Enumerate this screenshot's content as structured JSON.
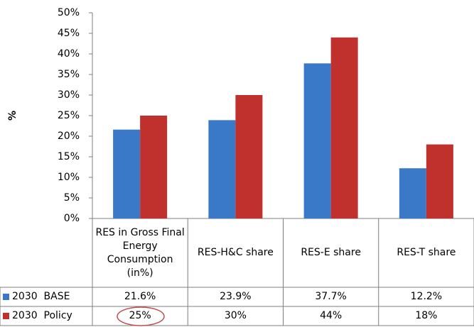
{
  "chart_data": {
    "type": "bar",
    "y_label": "%",
    "categories": [
      "RES in Gross Final Energy Consumption (in%)",
      "RES-H&C share",
      "RES-E share",
      "RES-T share"
    ],
    "series": [
      {
        "name": "2030  BASE",
        "color": "#3a78c8",
        "values": [
          21.6,
          23.9,
          37.7,
          12.2
        ],
        "value_labels": [
          "21.6%",
          "23.9%",
          "37.7%",
          "12.2%"
        ]
      },
      {
        "name": "2030  Policy",
        "color": "#c0312e",
        "values": [
          25,
          30,
          44,
          18
        ],
        "value_labels": [
          "25%",
          "30%",
          "44%",
          "18%"
        ]
      }
    ],
    "ylim": [
      0,
      50
    ],
    "yticks": [
      {
        "value": 0,
        "label": "0%"
      },
      {
        "value": 5,
        "label": "5%"
      },
      {
        "value": 10,
        "label": "10%"
      },
      {
        "value": 15,
        "label": "15%"
      },
      {
        "value": 20,
        "label": "20%"
      },
      {
        "value": 25,
        "label": "25%"
      },
      {
        "value": 30,
        "label": "30%"
      },
      {
        "value": 35,
        "label": "35%"
      },
      {
        "value": 40,
        "label": "40%"
      },
      {
        "value": 45,
        "label": "45%"
      },
      {
        "value": 50,
        "label": "50%"
      }
    ]
  }
}
